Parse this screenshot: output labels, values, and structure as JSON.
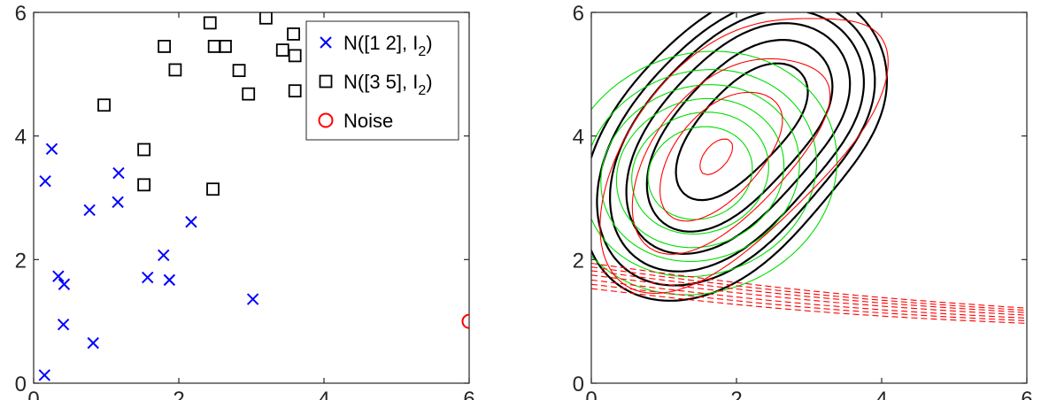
{
  "chart_data": [
    {
      "type": "scatter",
      "title": "",
      "xlabel": "",
      "ylabel": "",
      "xlim": [
        0,
        6
      ],
      "ylim": [
        0,
        6
      ],
      "xticks": [
        "0",
        "2",
        "4",
        "6"
      ],
      "yticks": [
        "0",
        "2",
        "4",
        "6"
      ],
      "legend": "top-right",
      "series": [
        {
          "name": "N([1 2], I_2)",
          "label_main": "N([1 2], I",
          "label_sub": "2",
          "label_end": ")",
          "marker": "x",
          "color": "#0000ff",
          "points": [
            [
              0.15,
              0.13
            ],
            [
              0.16,
              3.27
            ],
            [
              0.25,
              3.79
            ],
            [
              0.34,
              1.73
            ],
            [
              0.42,
              1.6
            ],
            [
              0.41,
              0.95
            ],
            [
              0.77,
              2.8
            ],
            [
              0.82,
              0.65
            ],
            [
              1.17,
              3.4
            ],
            [
              1.16,
              2.93
            ],
            [
              1.57,
              1.71
            ],
            [
              1.79,
              2.07
            ],
            [
              1.87,
              1.67
            ],
            [
              2.17,
              2.61
            ],
            [
              3.02,
              1.36
            ]
          ]
        },
        {
          "name": "N([3 5], I_2)",
          "label_main": "N([3 5], I",
          "label_sub": "2",
          "label_end": ")",
          "marker": "square",
          "color": "#000000",
          "points": [
            [
              0.97,
              4.5
            ],
            [
              1.52,
              3.78
            ],
            [
              1.52,
              3.21
            ],
            [
              1.8,
              5.45
            ],
            [
              1.95,
              5.07
            ],
            [
              2.43,
              5.83
            ],
            [
              2.47,
              3.14
            ],
            [
              2.49,
              5.45
            ],
            [
              2.64,
              5.45
            ],
            [
              2.83,
              5.06
            ],
            [
              2.96,
              4.68
            ],
            [
              3.2,
              5.91
            ],
            [
              3.43,
              5.39
            ],
            [
              3.58,
              5.65
            ],
            [
              3.6,
              5.3
            ],
            [
              3.6,
              4.73
            ]
          ]
        },
        {
          "name": "Noise",
          "label_main": "Noise",
          "label_sub": "",
          "label_end": "",
          "marker": "circle",
          "color": "#ff0000",
          "points": [
            [
              6.0,
              1.0
            ]
          ]
        }
      ]
    },
    {
      "type": "contour",
      "title": "",
      "xlabel": "",
      "ylabel": "",
      "xlim": [
        0,
        6
      ],
      "ylim": [
        0,
        6
      ],
      "xticks": [
        "0",
        "2",
        "4",
        "6"
      ],
      "yticks": [
        "0",
        "2",
        "4",
        "6"
      ],
      "series": [
        {
          "style": "solid",
          "color": "#000000",
          "components": [
            {
              "cx": 1.6,
              "cy": 3.5,
              "sx": 1.15,
              "sy": 1.45,
              "rho": 0.3,
              "w": 1.0
            },
            {
              "cx": 2.9,
              "cy": 5.0,
              "sx": 0.9,
              "sy": 1.0,
              "rho": 0.0,
              "w": 0.55
            }
          ],
          "levels": [
            0.55,
            0.7,
            0.85,
            1.05,
            1.3,
            1.6,
            1.95,
            2.4
          ]
        },
        {
          "style": "dashed",
          "color": "#00dd00",
          "components": [
            {
              "cx": 1.5,
              "cy": 3.4,
              "sx": 1.1,
              "sy": 1.15,
              "rho": 0.1,
              "w": 1.0
            }
          ],
          "levels": [
            0.6,
            0.9,
            1.2,
            1.5,
            1.8,
            2.1
          ]
        },
        {
          "style": "dashed",
          "color": "#ff0000",
          "components": [
            {
              "cx": 1.6,
              "cy": 3.6,
              "sx": 0.9,
              "sy": 1.3,
              "rho": 0.5,
              "w": 1.0
            },
            {
              "cx": 3.3,
              "cy": 4.6,
              "sx": 0.9,
              "sy": 1.2,
              "rho": 0.55,
              "w": 0.35
            }
          ],
          "levels": [
            0.5,
            1.0,
            1.5,
            2.0,
            2.5
          ],
          "noise_band": {
            "start": [
              0.0,
              1.75
            ],
            "end": [
              6.0,
              1.1
            ],
            "offsets": [
              -0.22,
              -0.15,
              -0.08,
              0.0,
              0.07,
              0.13,
              0.19
            ],
            "dip": 0.08
          }
        }
      ]
    }
  ]
}
